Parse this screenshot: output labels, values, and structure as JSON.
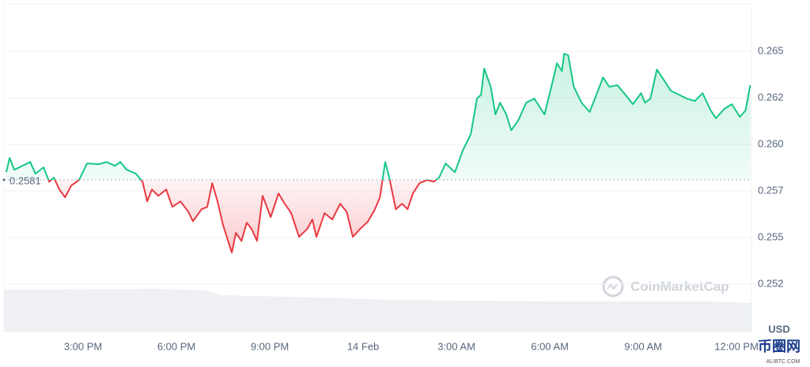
{
  "chart_data": {
    "type": "line",
    "x": [
      12.53,
      12.64,
      12.79,
      13.3,
      13.47,
      13.73,
      13.91,
      14.06,
      14.24,
      14.42,
      14.62,
      14.87,
      15.13,
      15.51,
      15.76,
      16.02,
      16.2,
      16.4,
      16.7,
      16.91,
      17.06,
      17.21,
      17.42,
      17.67,
      17.87,
      18.13,
      18.38,
      18.53,
      18.81,
      18.99,
      19.15,
      19.32,
      19.5,
      19.7,
      19.78,
      19.91,
      20.09,
      20.26,
      20.42,
      20.59,
      20.77,
      21.03,
      21.28,
      21.48,
      21.69,
      21.94,
      22.2,
      22.37,
      22.5,
      22.76,
      23.01,
      23.26,
      23.47,
      23.67,
      23.9,
      24.16,
      24.38,
      24.54,
      24.71,
      24.84,
      25.05,
      25.25,
      25.43,
      25.6,
      25.81,
      26.06,
      26.27,
      26.44,
      26.65,
      26.95,
      27.21,
      27.46,
      27.66,
      27.79,
      27.89,
      28.1,
      28.25,
      28.4,
      28.6,
      28.76,
      28.99,
      29.24,
      29.5,
      29.83,
      30.08,
      30.23,
      30.39,
      30.46,
      30.59,
      30.77,
      31.02,
      31.28,
      31.45,
      31.71,
      31.91,
      32.17,
      32.47,
      32.67,
      32.93,
      33.06,
      33.23,
      33.44,
      33.64,
      33.89,
      34.15,
      34.4,
      34.66,
      34.91,
      35.17,
      35.34,
      35.6,
      35.85,
      36.11,
      36.29,
      36.44
    ],
    "values": [
      0.25851,
      0.25928,
      0.25864,
      0.25906,
      0.25843,
      0.25877,
      0.258,
      0.25822,
      0.25758,
      0.25716,
      0.25779,
      0.25809,
      0.25898,
      0.25894,
      0.25906,
      0.25885,
      0.25906,
      0.25864,
      0.25843,
      0.258,
      0.25694,
      0.25758,
      0.25724,
      0.25758,
      0.25665,
      0.25694,
      0.25639,
      0.25588,
      0.25652,
      0.25665,
      0.25792,
      0.25694,
      0.25567,
      0.25461,
      0.25419,
      0.25525,
      0.25482,
      0.2558,
      0.25546,
      0.25482,
      0.25724,
      0.2561,
      0.25737,
      0.25682,
      0.25631,
      0.25504,
      0.25546,
      0.25597,
      0.25504,
      0.25631,
      0.25597,
      0.25682,
      0.25639,
      0.25504,
      0.25546,
      0.25588,
      0.25652,
      0.25716,
      0.25906,
      0.25822,
      0.25652,
      0.25682,
      0.25652,
      0.25737,
      0.25792,
      0.25809,
      0.258,
      0.25822,
      0.25898,
      0.25851,
      0.2597,
      0.26055,
      0.26246,
      0.26267,
      0.26407,
      0.26309,
      0.26161,
      0.26224,
      0.26161,
      0.26076,
      0.26131,
      0.26224,
      0.26246,
      0.26161,
      0.2633,
      0.26436,
      0.26394,
      0.26487,
      0.26479,
      0.26309,
      0.26224,
      0.26174,
      0.26246,
      0.2636,
      0.26309,
      0.26318,
      0.26258,
      0.26216,
      0.26275,
      0.26224,
      0.26246,
      0.26402,
      0.26352,
      0.26288,
      0.26267,
      0.26246,
      0.26233,
      0.26275,
      0.26182,
      0.2614,
      0.2619,
      0.26216,
      0.26148,
      0.26182,
      0.26318
    ],
    "baseline": 0.2581,
    "up_color": "#16c784",
    "down_color": "#ea3943",
    "xlim": [
      12.33,
      36.48
    ],
    "xticks": [
      {
        "value": 15,
        "label": "3:00 PM"
      },
      {
        "value": 18,
        "label": "6:00 PM"
      },
      {
        "value": 21,
        "label": "9:00 PM"
      },
      {
        "value": 24,
        "label": "14 Feb"
      },
      {
        "value": 27,
        "label": "3:00 AM"
      },
      {
        "value": 30,
        "label": "6:00 AM"
      },
      {
        "value": 33,
        "label": "9:00 AM"
      },
      {
        "value": 36,
        "label": "12:00 PM"
      }
    ],
    "ylim": [
      0.24996,
      0.26754
    ],
    "yticks": [
      {
        "value": 0.2525,
        "label": "0.252"
      },
      0.255,
      {
        "value": 0.2575,
        "label": "0.257"
      },
      {
        "value": 0.26,
        "label": "0.260"
      },
      {
        "value": 0.2625,
        "label": "0.262"
      },
      0.265
    ],
    "grid": true,
    "y_unit": "USD",
    "watermark": "CoinMarketCap",
    "corner_watermark": "币圈网",
    "corner_watermark_sub": "ALIBTC.COM"
  }
}
